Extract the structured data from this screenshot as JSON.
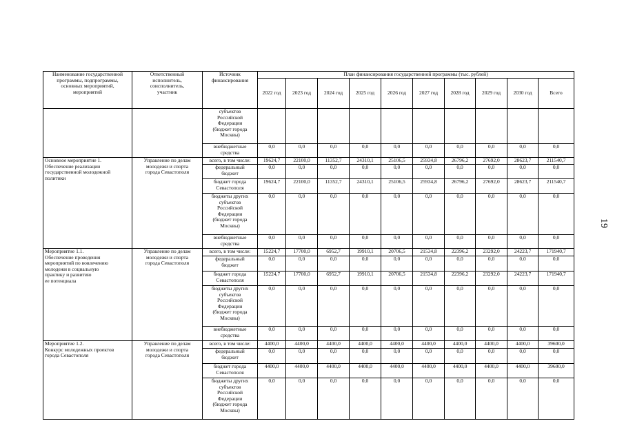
{
  "header": {
    "name_col": "Наименование государственной\nпрограммы, подпрограммы,\nосновных мероприятий,\nмероприятий",
    "responsible_col": "Ответственный\nисполнитель,\nсоисполнитель,\nучастник",
    "source_col": "Источник\nфинансирования",
    "plan_title": "План финансирования государственной программы (тыс. рублей)",
    "years": [
      "2022 год",
      "2023 год",
      "2024 год",
      "2025 год",
      "2026 год",
      "2027 год",
      "2028 год",
      "2029 год",
      "2030 год",
      "Всего"
    ]
  },
  "blocks": [
    {
      "rows": [
        {
          "source": "субъектов\nРоссийской\nФедерации\n(бюджет города\nМосквы)"
        },
        {
          "source": "внебюджетные\nсредства",
          "values": [
            "0,0",
            "0,0",
            "0,0",
            "0,0",
            "0,0",
            "0,0",
            "0,0",
            "0,0",
            "0,0",
            "0,0"
          ]
        }
      ]
    },
    {
      "name": "Основное мероприятие 1.\nОбеспечение реализации\nгосударственной молодежной\nполитики",
      "responsible": "Управление по делам\nмолодежи и спорта\nгорода Севастополя",
      "rows": [
        {
          "source": "всего, в том числе:",
          "values": [
            "19624,7",
            "22100,0",
            "11352,7",
            "24310,1",
            "25106,5",
            "25934,8",
            "26796,2",
            "27692,0",
            "28623,7",
            "211540,7"
          ]
        },
        {
          "source": "федеральный\nбюджет",
          "values": [
            "0,0",
            "0,0",
            "0,0",
            "0,0",
            "0,0",
            "0,0",
            "0,0",
            "0,0",
            "0,0",
            "0,0"
          ]
        },
        {
          "source": "бюджет города\nСевастополя",
          "values": [
            "19624,7",
            "22100,0",
            "11352,7",
            "24310,1",
            "25106,5",
            "25934,8",
            "26796,2",
            "27692,0",
            "28623,7",
            "211540,7"
          ]
        },
        {
          "source": "бюджеты других\nсубъектов\nРоссийской\nФедерации\n(бюджет города\nМосквы)",
          "values": [
            "0,0",
            "0,0",
            "0,0",
            "0,0",
            "0,0",
            "0,0",
            "0,0",
            "0,0",
            "0,0",
            "0,0"
          ]
        },
        {
          "source": "внебюджетные\nсредства",
          "values": [
            "0,0",
            "0,0",
            "0,0",
            "0,0",
            "0,0",
            "0,0",
            "0,0",
            "0,0",
            "0,0",
            "0,0"
          ]
        }
      ]
    },
    {
      "name": "Мероприятие 1.1.\nОбеспечение проведения\nмероприятий по вовлечению\nмолодежи в социальную\nпрактику и развитию\nее потенциала",
      "responsible": "Управление по делам\nмолодежи и спорта\nгорода Севастополя",
      "rows": [
        {
          "source": "всего, в том числе:",
          "values": [
            "15224,7",
            "17700,0",
            "6952,7",
            "19910,1",
            "20706,5",
            "21534,8",
            "22396,2",
            "23292,0",
            "24223,7",
            "171940,7"
          ]
        },
        {
          "source": "федеральный\nбюджет",
          "values": [
            "0,0",
            "0,0",
            "0,0",
            "0,0",
            "0,0",
            "0,0",
            "0,0",
            "0,0",
            "0,0",
            "0,0"
          ]
        },
        {
          "source": "бюджет города\nСевастополя",
          "values": [
            "15224,7",
            "17700,0",
            "6952,7",
            "19910,1",
            "20706,5",
            "21534,8",
            "22396,2",
            "23292,0",
            "24223,7",
            "171940,7"
          ]
        },
        {
          "source": "бюджеты других\nсубъектов\nРоссийской\nФедерации\n(бюджет города\nМосквы)",
          "values": [
            "0,0",
            "0,0",
            "0,0",
            "0,0",
            "0,0",
            "0,0",
            "0,0",
            "0,0",
            "0,0",
            "0,0"
          ]
        },
        {
          "source": "внебюджетные\nсредства",
          "values": [
            "0,0",
            "0,0",
            "0,0",
            "0,0",
            "0,0",
            "0,0",
            "0,0",
            "0,0",
            "0,0",
            "0,0"
          ]
        }
      ]
    },
    {
      "name": "Мероприятие 1.2.\nКонкурс молодежных проектов\nгорода Севастополя",
      "responsible": "Управление по делам\nмолодежи и спорта\nгорода Севастополя",
      "rows": [
        {
          "source": "всего, в том числе:",
          "values": [
            "4400,0",
            "4400,0",
            "4400,0",
            "4400,0",
            "4400,0",
            "4400,0",
            "4400,0",
            "4400,0",
            "4400,0",
            "39600,0"
          ]
        },
        {
          "source": "федеральный\nбюджет",
          "values": [
            "0,0",
            "0,0",
            "0,0",
            "0,0",
            "0,0",
            "0,0",
            "0,0",
            "0,0",
            "0,0",
            "0,0"
          ]
        },
        {
          "source": "бюджет города\nСевастополя",
          "values": [
            "4400,0",
            "4400,0",
            "4400,0",
            "4400,0",
            "4400,0",
            "4400,0",
            "4400,0",
            "4400,0",
            "4400,0",
            "39600,0"
          ]
        },
        {
          "source": "бюджеты других\nсубъектов\nРоссийской\nФедерации\n(бюджет города\nМосквы)",
          "values": [
            "0,0",
            "0,0",
            "0,0",
            "0,0",
            "0,0",
            "0,0",
            "0,0",
            "0,0",
            "0,0",
            "0,0"
          ]
        }
      ]
    }
  ],
  "page_number": "19"
}
